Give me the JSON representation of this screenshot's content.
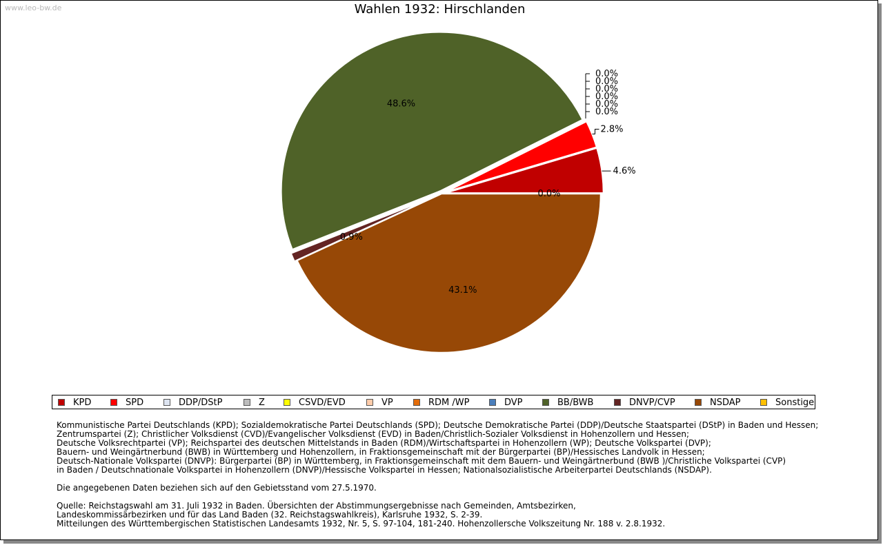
{
  "watermark": "www.leo-bw.de",
  "chart_data": {
    "type": "pie",
    "title": "Wahlen 1932: Hirschlanden",
    "slices": [
      {
        "name": "KPD",
        "value": 4.6,
        "label": "4.6%",
        "color": "#c00000"
      },
      {
        "name": "SPD",
        "value": 2.8,
        "label": "2.8%",
        "color": "#ff0000"
      },
      {
        "name": "DDP/DStP",
        "value": 0.0,
        "label": "0.0%",
        "color": "#dde4f1"
      },
      {
        "name": "Z",
        "value": 0.0,
        "label": "0.0%",
        "color": "#bdbdbd"
      },
      {
        "name": "CSVD/EVD",
        "value": 0.0,
        "label": "0.0%",
        "color": "#ffff00"
      },
      {
        "name": "VP",
        "value": 0.0,
        "label": "0.0%",
        "color": "#ffccaa"
      },
      {
        "name": "RDM /WP",
        "value": 0.0,
        "label": "0.0%",
        "color": "#e36c0a"
      },
      {
        "name": "DVP",
        "value": 0.0,
        "label": "0.0%",
        "color": "#4a7ebb"
      },
      {
        "name": "BB/BWB",
        "value": 48.6,
        "label": "48.6%",
        "color": "#4f6228"
      },
      {
        "name": "DNVP/CVP",
        "value": 0.9,
        "label": "0.9%",
        "color": "#632423"
      },
      {
        "name": "NSDAP",
        "value": 43.1,
        "label": "43.1%",
        "color": "#974806"
      },
      {
        "name": "Sonstige",
        "value": 0.0,
        "label": "0.0%",
        "color": "#ffc000"
      }
    ]
  },
  "notes": {
    "lines": [
      "Kommunistische Partei Deutschlands (KPD); Sozialdemokratische Partei Deutschlands (SPD); Deutsche Demokratische Partei (DDP)/Deutsche Staatspartei (DStP) in Baden und Hessen;",
      "Zentrumspartei (Z); Christlicher Volksdienst (CVD)/Evangelischer Volksdienst (EVD) in Baden/Christlich-Sozialer Volksdienst in Hohenzollern und Hessen;",
      "Deutsche Volksrechtpartei (VP); Reichspartei des deutschen Mittelstands in Baden (RDM)/Wirtschaftspartei in Hohenzollern (WP); Deutsche Volkspartei (DVP);",
      "Bauern- und Weingärtnerbund (BWB) in Württemberg und Hohenzollern, in Fraktionsgemeinschaft mit der Bürgerpartei (BP)/Hessisches Landvolk in Hessen;",
      "Deutsch-Nationale Volkspartei (DNVP): Bürgerpartei (BP) in Württemberg, in Fraktionsgemeinschaft mit dem Bauern- und Weingärtnerbund (BWB )/Christliche Volkspartei (CVP)",
      "in Baden / Deutschnationale Volkspartei in Hohenzollern (DNVP)/Hessische Volkspartei in Hessen; Nationalsozialistische Arbeiterpartei Deutschlands (NSDAP)."
    ],
    "territory": "Die angegebenen Daten beziehen sich auf den Gebietsstand vom 27.5.1970.",
    "source_lines": [
      "Quelle: Reichstagswahl am 31. Juli 1932 in Baden. Übersichten der Abstimmungsergebnisse nach Gemeinden, Amtsbezirken,",
      "Landeskommissärbezirken und für das Land Baden (32. Reichstagswahlkreis), Karlsruhe 1932, S. 2-39.",
      "Mitteilungen des Württembergischen Statistischen Landesamts 1932, Nr. 5, S. 97-104, 181-240. Hohenzollersche Volkszeitung Nr. 188 v. 2.8.1932."
    ]
  }
}
